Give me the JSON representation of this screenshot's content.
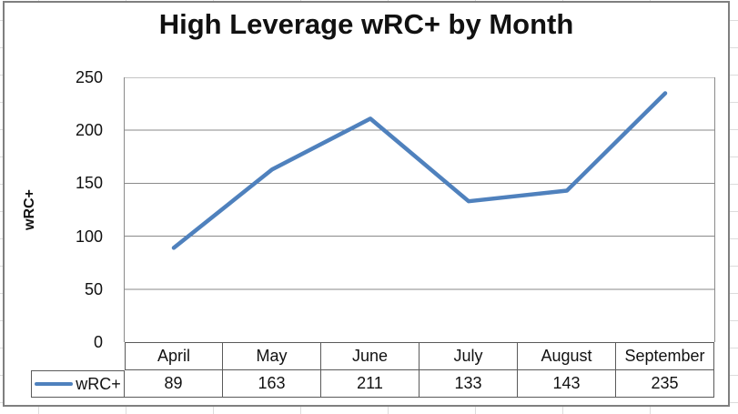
{
  "chart_data": {
    "type": "line",
    "title": "High Leverage wRC+ by Month",
    "ylabel": "wRC+",
    "xlabel": "",
    "categories": [
      "April",
      "May",
      "June",
      "July",
      "August",
      "September"
    ],
    "series": [
      {
        "name": "wRC+",
        "values": [
          89,
          163,
          211,
          133,
          143,
          235
        ],
        "color": "#4F81BD"
      }
    ],
    "ylim": [
      0,
      250
    ],
    "yticks": [
      250,
      200,
      150,
      100,
      50,
      0
    ],
    "grid": "horizontal-only",
    "legend_position": "data-table-left",
    "gridline_color": "#8a8a8a",
    "table_border_color": "#5a5a5a",
    "chart_border_color": "#7f7f7f"
  }
}
